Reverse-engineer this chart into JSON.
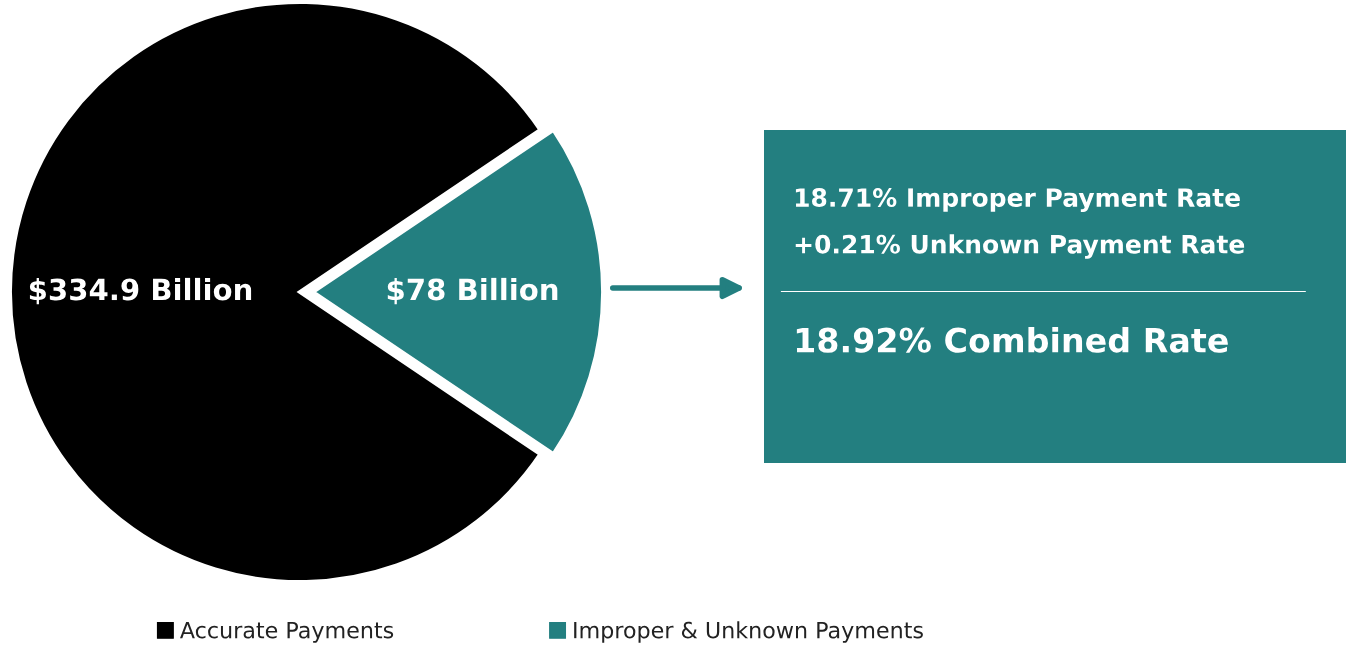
{
  "chart_data": [
    {
      "type": "pie",
      "categories": [
        "Accurate Payments",
        "Improper & Unknown Payments"
      ],
      "values": [
        334.9,
        78
      ],
      "colors": [
        "#000000",
        "#237f80"
      ],
      "value_labels": [
        "$334.9 Billion",
        "$78 Billion"
      ],
      "legend": "bottom"
    },
    {
      "type": "other",
      "color": "#237f80",
      "annotations": [
        "18.71% Improper Payment Rate",
        "+0.21% Unknown Payment Rate",
        "18.92% Combined Rate"
      ]
    }
  ]
}
